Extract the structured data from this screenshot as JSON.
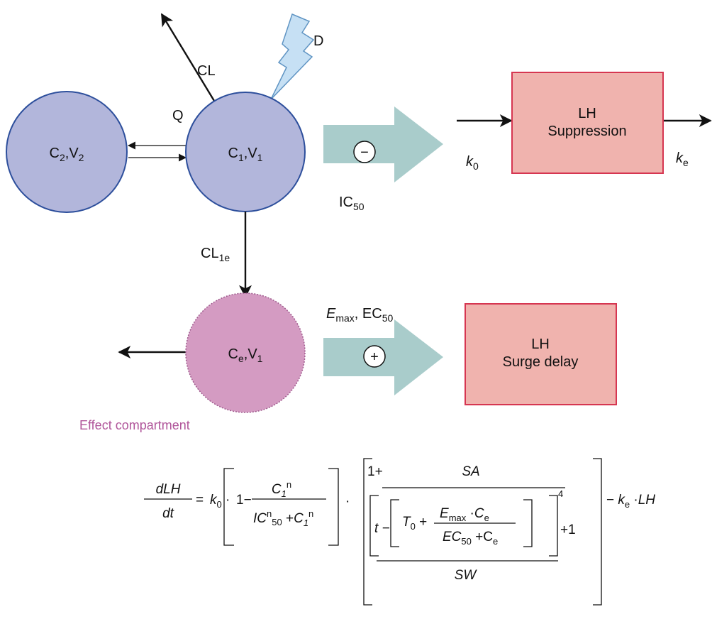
{
  "diagram": {
    "compartments": {
      "c2": {
        "c_sub": "2",
        "v_sub": "2"
      },
      "c1": {
        "c_sub": "1",
        "v_sub": "1"
      },
      "ce": {
        "c_sub": "e",
        "v_sub": "1"
      }
    },
    "labels": {
      "cl": "CL",
      "q": "Q",
      "d": "D",
      "cl1e_sub": "1e",
      "ic50_sub": "50",
      "emax_sub": "max",
      "ec50_sub": "50",
      "k0_sub": "0",
      "ke_sub": "e",
      "minus": "−",
      "plus": "+",
      "effect_compartment": "Effect compartment"
    },
    "boxes": {
      "suppression": {
        "line1": "LH",
        "line2": "Suppression"
      },
      "surge": {
        "line1": "LH",
        "line2": "Surge delay"
      }
    },
    "equation": {
      "numerator_top": "dLH",
      "denominator_bottom": "dt",
      "sa": "SA",
      "sw": "SW",
      "exponent": "4",
      "plus_one": "+1"
    }
  },
  "colors": {
    "compartment_fill": "#b2b6db",
    "compartment_stroke": "#2d4f9c",
    "effect_fill": "#d49bc2",
    "effect_stroke": "#a05a8e",
    "box_fill": "#f0b3ae",
    "box_stroke": "#d63651",
    "arrow_fill": "#a9cccb",
    "bolt_fill": "#c6e0f4",
    "bolt_stroke": "#5f94c3",
    "caption": "#b0559a"
  }
}
